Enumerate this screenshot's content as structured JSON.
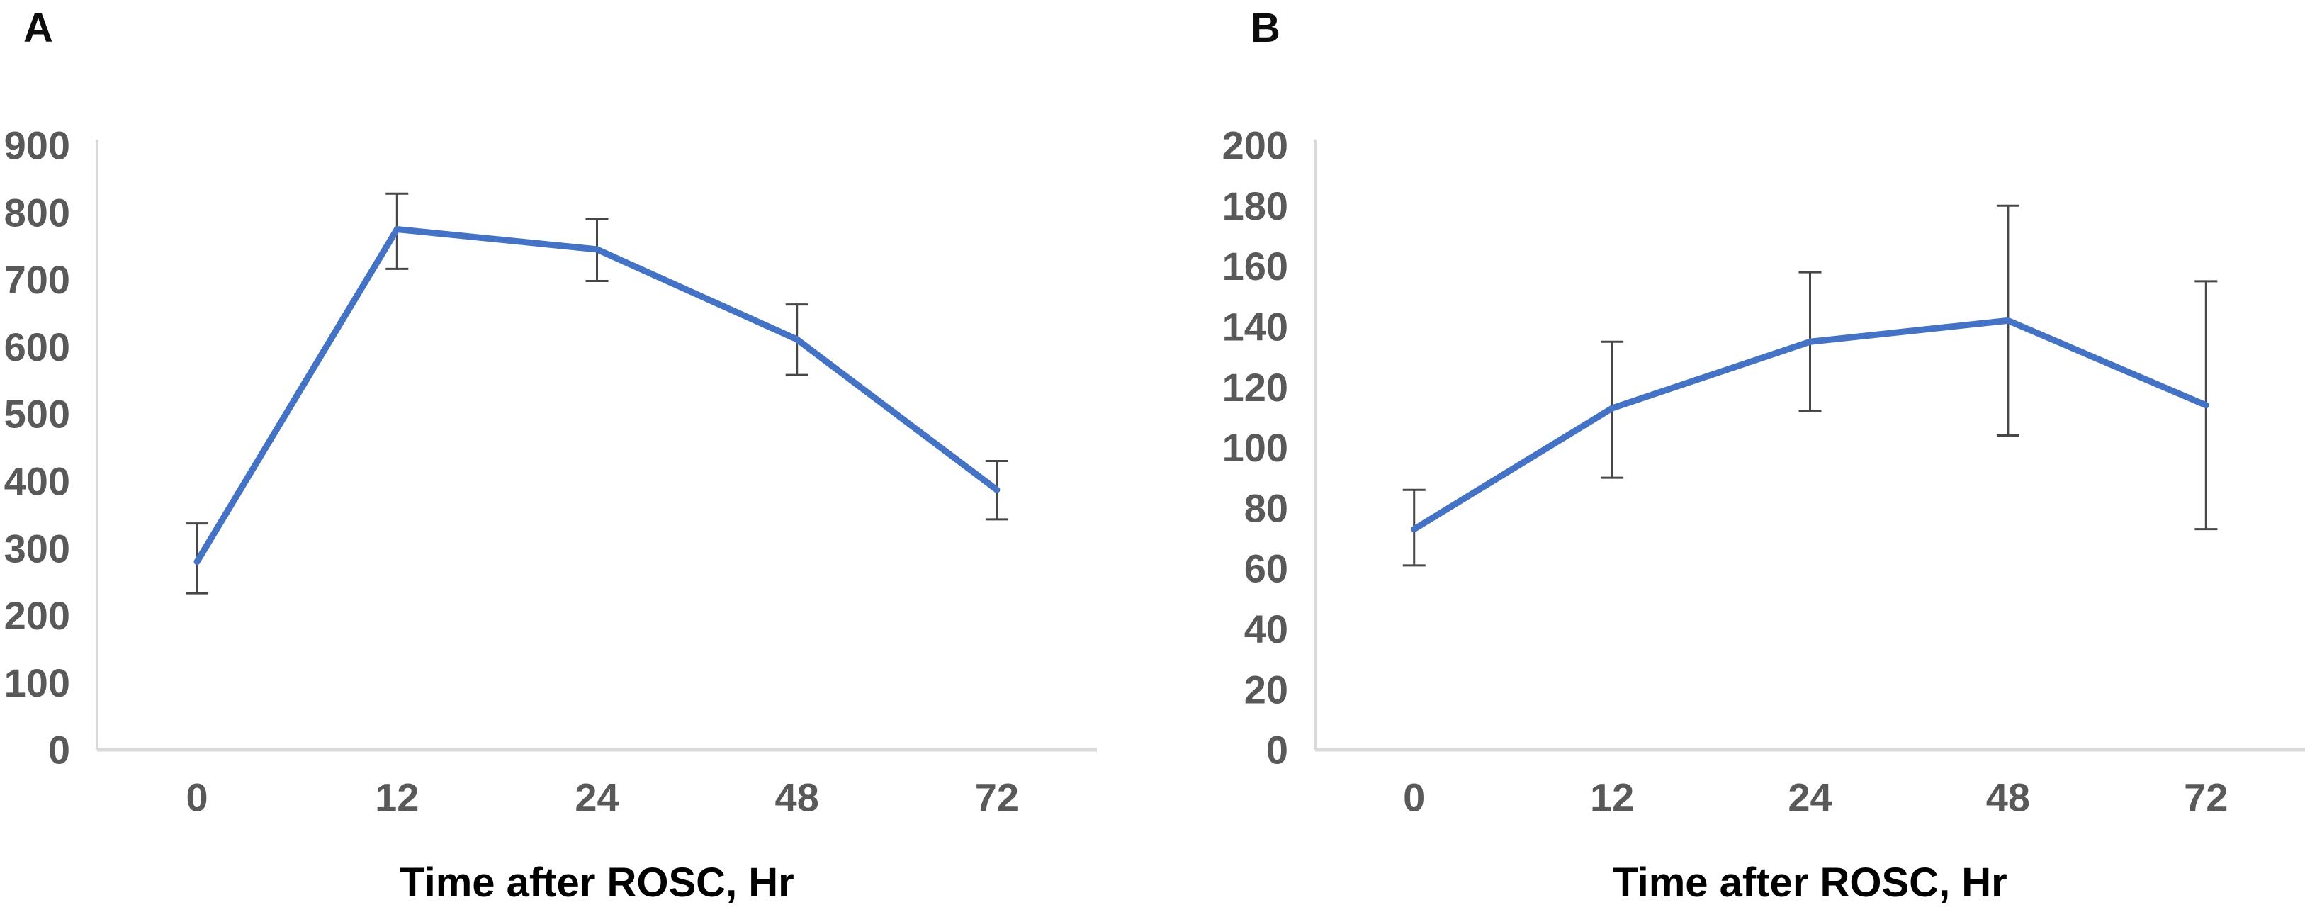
{
  "figure": {
    "background_color": "#ffffff",
    "line_color": "#4472C4",
    "error_bar_color": "#474747",
    "axis_line_color": "#d9d9d9",
    "tick_label_color": "#595959",
    "axis_title_color": "#000000",
    "panel_label_color": "#0d0d0d"
  },
  "chart_data": [
    {
      "type": "line",
      "panel_label": "A",
      "title": "",
      "xlabel": "Time after ROSC, Hr",
      "ylabel": "",
      "categories": [
        "0",
        "12",
        "24",
        "48",
        "72"
      ],
      "x": [
        0,
        12,
        24,
        48,
        72
      ],
      "values": [
        280,
        775,
        745,
        611,
        387
      ],
      "error_low": [
        233,
        716,
        698,
        558,
        343
      ],
      "error_high": [
        337,
        828,
        790,
        663,
        430
      ],
      "ylim": [
        0,
        900
      ],
      "ytick_step": 100,
      "grid": false,
      "legend": "none"
    },
    {
      "type": "line",
      "panel_label": "B",
      "title": "",
      "xlabel": "Time after ROSC, Hr",
      "ylabel": "",
      "categories": [
        "0",
        "12",
        "24",
        "48",
        "72"
      ],
      "x": [
        0,
        12,
        24,
        48,
        72
      ],
      "values": [
        73,
        113,
        135,
        142,
        114
      ],
      "error_low": [
        61,
        90,
        112,
        104,
        73
      ],
      "error_high": [
        86,
        135,
        158,
        180,
        155
      ],
      "ylim": [
        0,
        200
      ],
      "ytick_step": 20,
      "grid": false,
      "legend": "none"
    }
  ]
}
